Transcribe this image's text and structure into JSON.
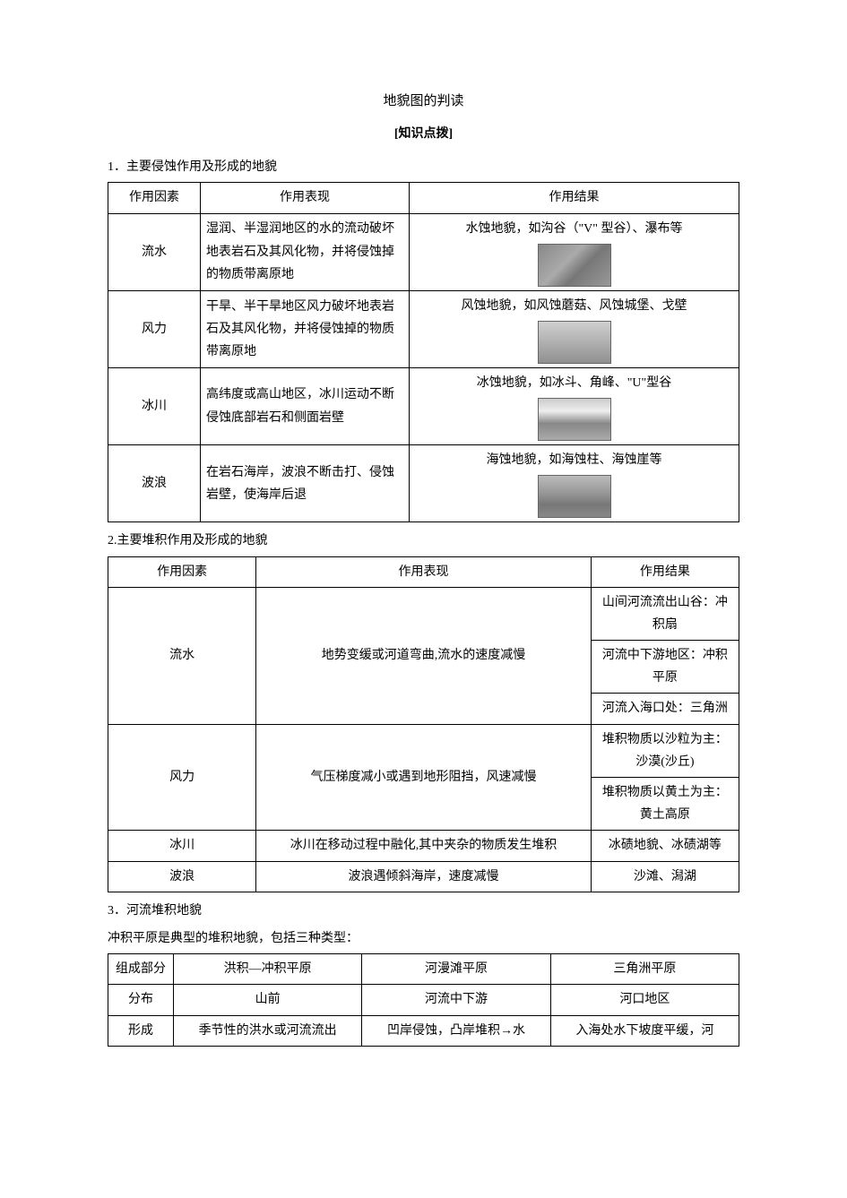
{
  "title": "地貌图的判读",
  "subtitle": "[知识点拨]",
  "section1": {
    "label": "1．主要侵蚀作用及形成的地貌",
    "headers": [
      "作用因素",
      "作用表现",
      "作用结果"
    ],
    "rows": [
      {
        "factor": "流水",
        "behavior": "湿润、半湿润地区的水的流动破坏地表岩石及其风化物，并将侵蚀掉的物质带离原地",
        "result": "水蚀地貌，如沟谷（\"V\" 型谷）、瀑布等",
        "img": "waterfall"
      },
      {
        "factor": "风力",
        "behavior": "干旱、半干旱地区风力破坏地表岩石及其风化物，并将侵蚀掉的物质带离原地",
        "result": "风蚀地貌，如风蚀蘑菇、风蚀城堡、戈壁",
        "img": "mushroom"
      },
      {
        "factor": "冰川",
        "behavior": "高纬度或高山地区，冰川运动不断侵蚀底部岩石和侧面岩壁",
        "result": "冰蚀地貌，如冰斗、角峰、\"U\"型谷",
        "img": "mountain"
      },
      {
        "factor": "波浪",
        "behavior": "在岩石海岸，波浪不断击打、侵蚀岩壁，使海岸后退",
        "result": "海蚀地貌，如海蚀柱、海蚀崖等",
        "img": "sea"
      }
    ]
  },
  "section2": {
    "label": "2.主要堆积作用及形成的地貌",
    "headers": [
      "作用因素",
      "作用表现",
      "作用结果"
    ],
    "rows": {
      "liushui": {
        "factor": "流水",
        "behavior": "地势变缓或河道弯曲,流水的速度减慢",
        "results": [
          "山间河流流出山谷：冲积扇",
          "河流中下游地区：冲积平原",
          "河流入海口处：三角洲"
        ]
      },
      "fengli": {
        "factor": "风力",
        "behavior": "气压梯度减小或遇到地形阻挡，风速减慢",
        "results": [
          "堆积物质以沙粒为主：沙漠(沙丘)",
          "堆积物质以黄土为主：黄土高原"
        ]
      },
      "bingchuan": {
        "factor": "冰川",
        "behavior": "冰川在移动过程中融化,其中夹杂的物质发生堆积",
        "result": "冰碛地貌、冰碛湖等"
      },
      "bolang": {
        "factor": "波浪",
        "behavior": "波浪遇倾斜海岸，速度减慢",
        "result": "沙滩、潟湖"
      }
    }
  },
  "section3": {
    "label": "3．河流堆积地貌",
    "intro": "冲积平原是典型的堆积地貌，包括三种类型：",
    "headers": [
      "组成部分",
      "洪积—冲积平原",
      "河漫滩平原",
      "三角洲平原"
    ],
    "row_labels": {
      "fenbu": "分布",
      "xingcheng": "形成"
    },
    "fenbu": [
      "山前",
      "河流中下游",
      "河口地区"
    ],
    "xingcheng": [
      "季节性的洪水或河流流出",
      "凹岸侵蚀，凸岸堆积→水",
      "入海处水下坡度平缓，河"
    ]
  }
}
